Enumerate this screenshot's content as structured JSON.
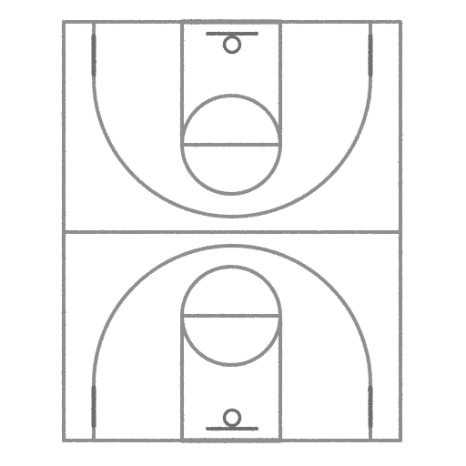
{
  "diagram": {
    "subject": "basketball-court-full",
    "orientation": "vertical",
    "line_color": "#8e8e8e",
    "dark_line_color": "#6e6e6e",
    "background_color": "#ffffff"
  }
}
